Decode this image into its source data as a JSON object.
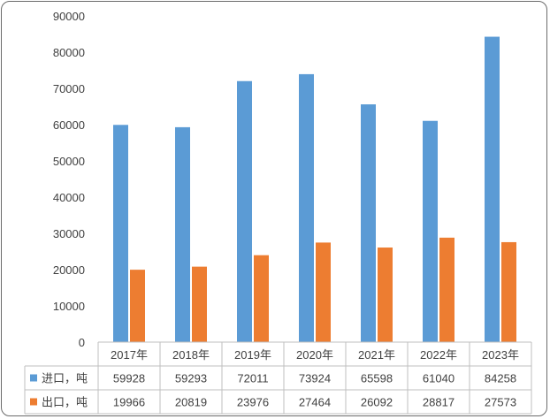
{
  "chart_data": {
    "type": "bar",
    "categories": [
      "2017年",
      "2018年",
      "2019年",
      "2020年",
      "2021年",
      "2022年",
      "2023年"
    ],
    "series": [
      {
        "name": "进口，吨",
        "values": [
          59928,
          59293,
          72011,
          73924,
          65598,
          61040,
          84258
        ],
        "color": "#5b9bd5"
      },
      {
        "name": "出口，吨",
        "values": [
          19966,
          20819,
          23976,
          27464,
          26092,
          28817,
          27573
        ],
        "color": "#ed7d31"
      }
    ],
    "y_ticks": [
      "0",
      "10000",
      "20000",
      "30000",
      "40000",
      "50000",
      "60000",
      "70000",
      "80000",
      "90000"
    ],
    "ylim": [
      0,
      90000
    ],
    "grid": false,
    "legend": "data-table-below",
    "title": "",
    "xlabel": "",
    "ylabel": ""
  }
}
